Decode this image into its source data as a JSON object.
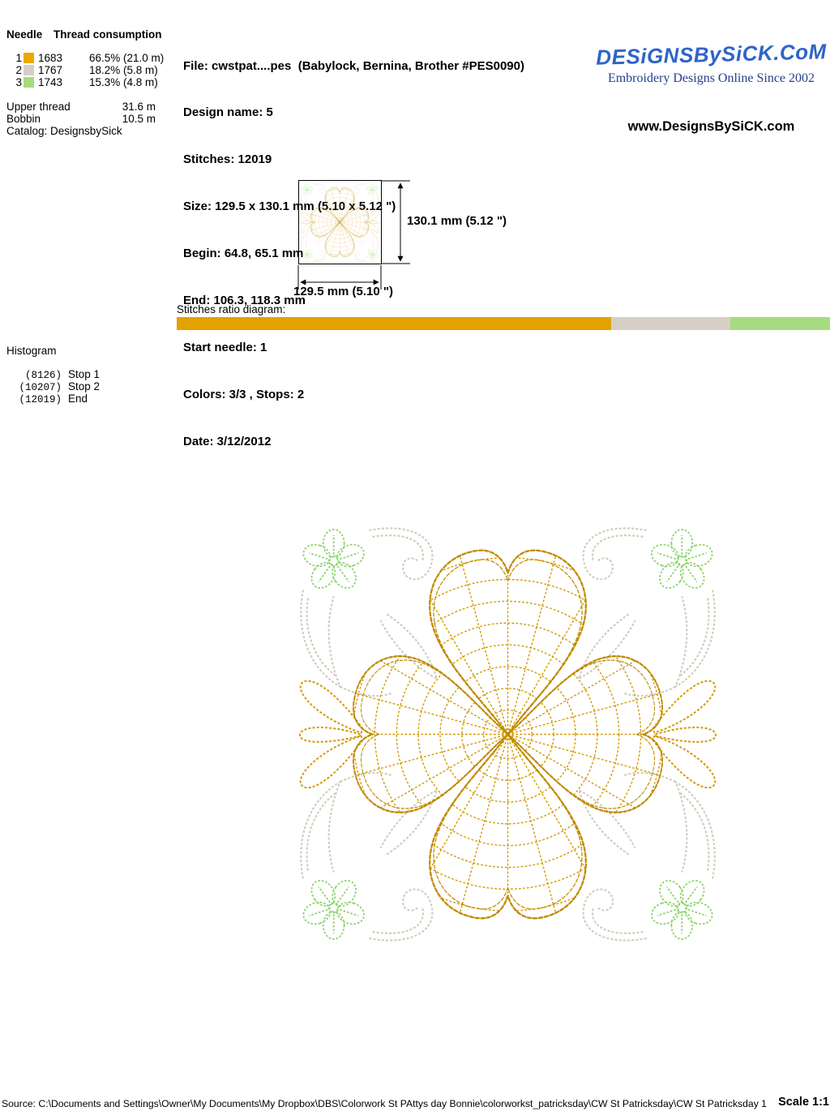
{
  "needle_table": {
    "header_needle": "Needle",
    "header_consumption": "Thread consumption",
    "rows": [
      {
        "needle": "1",
        "color": "#EBA900",
        "thread": "1683",
        "consumption": "66.5% (21.0 m)"
      },
      {
        "needle": "2",
        "color": "#D7CFC6",
        "thread": "1767",
        "consumption": "18.2% (5.8 m)"
      },
      {
        "needle": "3",
        "color": "#A5DC80",
        "thread": "1743",
        "consumption": "15.3% (4.8 m)"
      }
    ],
    "upper_thread_label": "Upper thread",
    "upper_thread_value": "31.6 m",
    "bobbin_label": "Bobbin",
    "bobbin_value": "10.5 m",
    "catalog_label": "Catalog: DesignsbySick"
  },
  "file_info": {
    "lines": [
      "File: cwstpat....pes  (Babylock, Bernina, Brother #PES0090)",
      "Design name: 5",
      "Stitches: 12019",
      "Size: 129.5 x 130.1 mm (5.10 x 5.12 \")",
      "Begin: 64.8, 65.1 mm",
      "End: 106.3, 118.3 mm",
      "Start needle: 1",
      "Colors: 3/3 , Stops: 2",
      "Date: 3/12/2012"
    ]
  },
  "branding": {
    "logo_text": "DESiGNSBySiCK.CoM",
    "logo_color": "#2E64C8",
    "tagline": "Embroidery Designs Online Since 2002",
    "website": "www.DesignsBySiCK.com"
  },
  "dimensions": {
    "height_label": "130.1 mm (5.12 \")",
    "width_label": "129.5 mm (5.10 \")"
  },
  "ratio_diagram": {
    "label": "Stitches ratio diagram:",
    "segments": [
      {
        "color": "#E3A200",
        "percent": 66.5
      },
      {
        "color": "#D7CFC6",
        "percent": 18.2
      },
      {
        "color": "#A5DC80",
        "percent": 15.3
      }
    ]
  },
  "histogram": {
    "title": "Histogram",
    "entries": [
      {
        "count": "(8126)",
        "label": "Stop 1"
      },
      {
        "count": "(10207)",
        "label": "Stop 2"
      },
      {
        "count": "(12019)",
        "label": "End"
      }
    ]
  },
  "footer": {
    "source": "Source: C:\\Documents and Settings\\Owner\\My Documents\\My Dropbox\\DBS\\Colorwork St PAttys day Bonnie\\colorworkst_patricksday\\CW St Patricksday\\CW St Patricksday 1",
    "scale": "Scale 1:1"
  },
  "design_colors": {
    "gold": "#D29A00",
    "gold_dark": "#C08A00",
    "green": "#8CD36B",
    "tan": "#D2CABD"
  }
}
